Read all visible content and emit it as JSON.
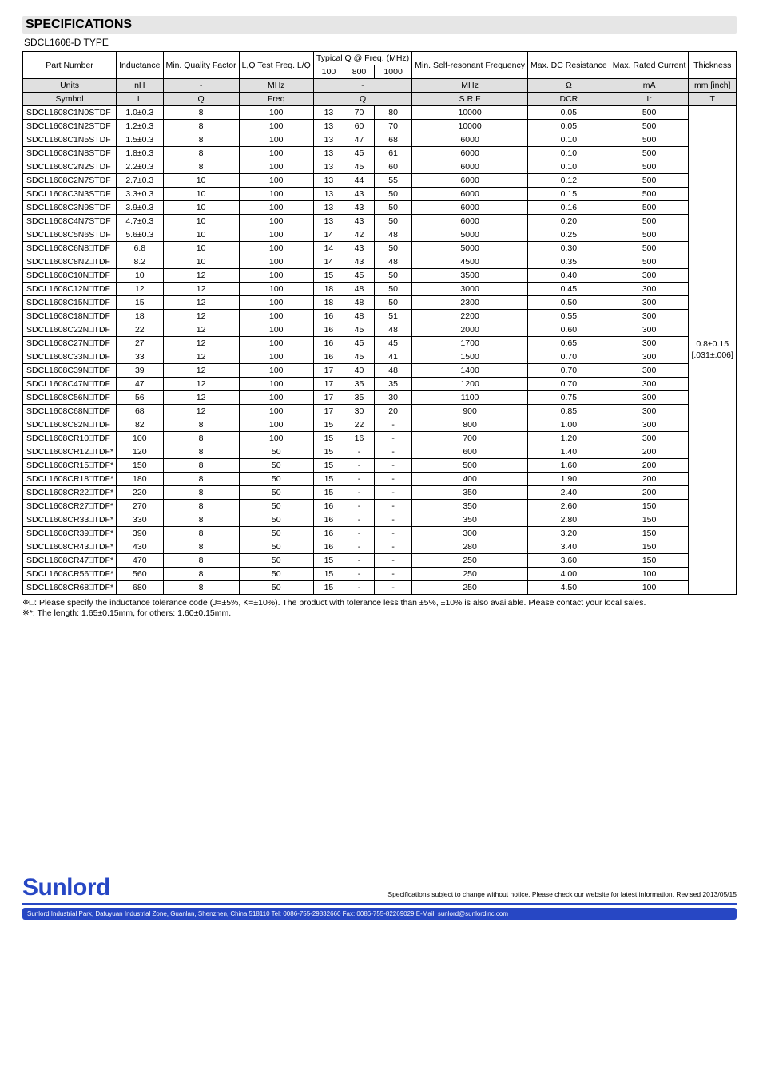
{
  "heading": "SPECIFICATIONS",
  "type_line": "SDCL1608-D TYPE",
  "table": {
    "header": {
      "part_number": "Part Number",
      "inductance": "Inductance",
      "min_q": "Min. Quality Factor",
      "lq_test": "L,Q Test Freq. L/Q",
      "typq_group": "Typical Q @ Freq. (MHz)",
      "q100": "100",
      "q800": "800",
      "q1000": "1000",
      "srf": "Min. Self-resonant Frequency",
      "dcr": "Max. DC Resistance",
      "ir": "Max. Rated Current",
      "thickness": "Thickness"
    },
    "units_row": {
      "label": "Units",
      "inductance": "nH",
      "min_q": "-",
      "lq_test": "MHz",
      "typq": "-",
      "srf": "MHz",
      "dcr": "Ω",
      "ir": "mA",
      "thickness": "mm [inch]"
    },
    "symbol_row": {
      "label": "Symbol",
      "inductance": "L",
      "min_q": "Q",
      "lq_test": "Freq",
      "typq": "Q",
      "srf": "S.R.F",
      "dcr": "DCR",
      "ir": "Ir",
      "thickness": "T"
    },
    "thickness_value": "0.8±0.15 [.031±.006]",
    "rows": [
      {
        "pn": "SDCL1608C1N0STDF",
        "L": "1.0±0.3",
        "Q": "8",
        "F": "100",
        "q100": "13",
        "q800": "70",
        "q1000": "80",
        "srf": "10000",
        "dcr": "0.05",
        "ir": "500"
      },
      {
        "pn": "SDCL1608C1N2STDF",
        "L": "1.2±0.3",
        "Q": "8",
        "F": "100",
        "q100": "13",
        "q800": "60",
        "q1000": "70",
        "srf": "10000",
        "dcr": "0.05",
        "ir": "500"
      },
      {
        "pn": "SDCL1608C1N5STDF",
        "L": "1.5±0.3",
        "Q": "8",
        "F": "100",
        "q100": "13",
        "q800": "47",
        "q1000": "68",
        "srf": "6000",
        "dcr": "0.10",
        "ir": "500"
      },
      {
        "pn": "SDCL1608C1N8STDF",
        "L": "1.8±0.3",
        "Q": "8",
        "F": "100",
        "q100": "13",
        "q800": "45",
        "q1000": "61",
        "srf": "6000",
        "dcr": "0.10",
        "ir": "500"
      },
      {
        "pn": "SDCL1608C2N2STDF",
        "L": "2.2±0.3",
        "Q": "8",
        "F": "100",
        "q100": "13",
        "q800": "45",
        "q1000": "60",
        "srf": "6000",
        "dcr": "0.10",
        "ir": "500"
      },
      {
        "pn": "SDCL1608C2N7STDF",
        "L": "2.7±0.3",
        "Q": "10",
        "F": "100",
        "q100": "13",
        "q800": "44",
        "q1000": "55",
        "srf": "6000",
        "dcr": "0.12",
        "ir": "500"
      },
      {
        "pn": "SDCL1608C3N3STDF",
        "L": "3.3±0.3",
        "Q": "10",
        "F": "100",
        "q100": "13",
        "q800": "43",
        "q1000": "50",
        "srf": "6000",
        "dcr": "0.15",
        "ir": "500"
      },
      {
        "pn": "SDCL1608C3N9STDF",
        "L": "3.9±0.3",
        "Q": "10",
        "F": "100",
        "q100": "13",
        "q800": "43",
        "q1000": "50",
        "srf": "6000",
        "dcr": "0.16",
        "ir": "500"
      },
      {
        "pn": "SDCL1608C4N7STDF",
        "L": "4.7±0.3",
        "Q": "10",
        "F": "100",
        "q100": "13",
        "q800": "43",
        "q1000": "50",
        "srf": "6000",
        "dcr": "0.20",
        "ir": "500"
      },
      {
        "pn": "SDCL1608C5N6STDF",
        "L": "5.6±0.3",
        "Q": "10",
        "F": "100",
        "q100": "14",
        "q800": "42",
        "q1000": "48",
        "srf": "5000",
        "dcr": "0.25",
        "ir": "500"
      },
      {
        "pn": "SDCL1608C6N8□TDF",
        "L": "6.8",
        "Q": "10",
        "F": "100",
        "q100": "14",
        "q800": "43",
        "q1000": "50",
        "srf": "5000",
        "dcr": "0.30",
        "ir": "500"
      },
      {
        "pn": "SDCL1608C8N2□TDF",
        "L": "8.2",
        "Q": "10",
        "F": "100",
        "q100": "14",
        "q800": "43",
        "q1000": "48",
        "srf": "4500",
        "dcr": "0.35",
        "ir": "500"
      },
      {
        "pn": "SDCL1608C10N□TDF",
        "L": "10",
        "Q": "12",
        "F": "100",
        "q100": "15",
        "q800": "45",
        "q1000": "50",
        "srf": "3500",
        "dcr": "0.40",
        "ir": "300"
      },
      {
        "pn": "SDCL1608C12N□TDF",
        "L": "12",
        "Q": "12",
        "F": "100",
        "q100": "18",
        "q800": "48",
        "q1000": "50",
        "srf": "3000",
        "dcr": "0.45",
        "ir": "300"
      },
      {
        "pn": "SDCL1608C15N□TDF",
        "L": "15",
        "Q": "12",
        "F": "100",
        "q100": "18",
        "q800": "48",
        "q1000": "50",
        "srf": "2300",
        "dcr": "0.50",
        "ir": "300"
      },
      {
        "pn": "SDCL1608C18N□TDF",
        "L": "18",
        "Q": "12",
        "F": "100",
        "q100": "16",
        "q800": "48",
        "q1000": "51",
        "srf": "2200",
        "dcr": "0.55",
        "ir": "300"
      },
      {
        "pn": "SDCL1608C22N□TDF",
        "L": "22",
        "Q": "12",
        "F": "100",
        "q100": "16",
        "q800": "45",
        "q1000": "48",
        "srf": "2000",
        "dcr": "0.60",
        "ir": "300"
      },
      {
        "pn": "SDCL1608C27N□TDF",
        "L": "27",
        "Q": "12",
        "F": "100",
        "q100": "16",
        "q800": "45",
        "q1000": "45",
        "srf": "1700",
        "dcr": "0.65",
        "ir": "300"
      },
      {
        "pn": "SDCL1608C33N□TDF",
        "L": "33",
        "Q": "12",
        "F": "100",
        "q100": "16",
        "q800": "45",
        "q1000": "41",
        "srf": "1500",
        "dcr": "0.70",
        "ir": "300"
      },
      {
        "pn": "SDCL1608C39N□TDF",
        "L": "39",
        "Q": "12",
        "F": "100",
        "q100": "17",
        "q800": "40",
        "q1000": "48",
        "srf": "1400",
        "dcr": "0.70",
        "ir": "300"
      },
      {
        "pn": "SDCL1608C47N□TDF",
        "L": "47",
        "Q": "12",
        "F": "100",
        "q100": "17",
        "q800": "35",
        "q1000": "35",
        "srf": "1200",
        "dcr": "0.70",
        "ir": "300"
      },
      {
        "pn": "SDCL1608C56N□TDF",
        "L": "56",
        "Q": "12",
        "F": "100",
        "q100": "17",
        "q800": "35",
        "q1000": "30",
        "srf": "1100",
        "dcr": "0.75",
        "ir": "300"
      },
      {
        "pn": "SDCL1608C68N□TDF",
        "L": "68",
        "Q": "12",
        "F": "100",
        "q100": "17",
        "q800": "30",
        "q1000": "20",
        "srf": "900",
        "dcr": "0.85",
        "ir": "300"
      },
      {
        "pn": "SDCL1608C82N□TDF",
        "L": "82",
        "Q": "8",
        "F": "100",
        "q100": "15",
        "q800": "22",
        "q1000": "-",
        "srf": "800",
        "dcr": "1.00",
        "ir": "300"
      },
      {
        "pn": "SDCL1608CR10□TDF",
        "L": "100",
        "Q": "8",
        "F": "100",
        "q100": "15",
        "q800": "16",
        "q1000": "-",
        "srf": "700",
        "dcr": "1.20",
        "ir": "300"
      },
      {
        "pn": "SDCL1608CR12□TDF*",
        "L": "120",
        "Q": "8",
        "F": "50",
        "q100": "15",
        "q800": "-",
        "q1000": "-",
        "srf": "600",
        "dcr": "1.40",
        "ir": "200"
      },
      {
        "pn": "SDCL1608CR15□TDF*",
        "L": "150",
        "Q": "8",
        "F": "50",
        "q100": "15",
        "q800": "-",
        "q1000": "-",
        "srf": "500",
        "dcr": "1.60",
        "ir": "200"
      },
      {
        "pn": "SDCL1608CR18□TDF*",
        "L": "180",
        "Q": "8",
        "F": "50",
        "q100": "15",
        "q800": "-",
        "q1000": "-",
        "srf": "400",
        "dcr": "1.90",
        "ir": "200"
      },
      {
        "pn": "SDCL1608CR22□TDF*",
        "L": "220",
        "Q": "8",
        "F": "50",
        "q100": "15",
        "q800": "-",
        "q1000": "-",
        "srf": "350",
        "dcr": "2.40",
        "ir": "200"
      },
      {
        "pn": "SDCL1608CR27□TDF*",
        "L": "270",
        "Q": "8",
        "F": "50",
        "q100": "16",
        "q800": "-",
        "q1000": "-",
        "srf": "350",
        "dcr": "2.60",
        "ir": "150"
      },
      {
        "pn": "SDCL1608CR33□TDF*",
        "L": "330",
        "Q": "8",
        "F": "50",
        "q100": "16",
        "q800": "-",
        "q1000": "-",
        "srf": "350",
        "dcr": "2.80",
        "ir": "150"
      },
      {
        "pn": "SDCL1608CR39□TDF*",
        "L": "390",
        "Q": "8",
        "F": "50",
        "q100": "16",
        "q800": "-",
        "q1000": "-",
        "srf": "300",
        "dcr": "3.20",
        "ir": "150"
      },
      {
        "pn": "SDCL1608CR43□TDF*",
        "L": "430",
        "Q": "8",
        "F": "50",
        "q100": "16",
        "q800": "-",
        "q1000": "-",
        "srf": "280",
        "dcr": "3.40",
        "ir": "150"
      },
      {
        "pn": "SDCL1608CR47□TDF*",
        "L": "470",
        "Q": "8",
        "F": "50",
        "q100": "15",
        "q800": "-",
        "q1000": "-",
        "srf": "250",
        "dcr": "3.60",
        "ir": "150"
      },
      {
        "pn": "SDCL1608CR56□TDF*",
        "L": "560",
        "Q": "8",
        "F": "50",
        "q100": "15",
        "q800": "-",
        "q1000": "-",
        "srf": "250",
        "dcr": "4.00",
        "ir": "100"
      },
      {
        "pn": "SDCL1608CR68□TDF*",
        "L": "680",
        "Q": "8",
        "F": "50",
        "q100": "15",
        "q800": "-",
        "q1000": "-",
        "srf": "250",
        "dcr": "4.50",
        "ir": "100"
      }
    ]
  },
  "notes": {
    "n1": "※□: Please specify the inductance tolerance code (J=±5%, K=±10%). The product with tolerance less than ±5%, ±10% is also available. Please contact your local sales.",
    "n2": "※*: The length: 1.65±0.15mm, for others: 1.60±0.15mm."
  },
  "footer": {
    "brand": "Sunlord",
    "disclaimer": "Specifications subject to change without notice. Please check our website for latest information.    Revised 2013/05/15",
    "address": "Sunlord Industrial Park, Dafuyuan Industrial Zone, Guanlan, Shenzhen, China 518110 Tel: 0086-755-29832660 Fax: 0086-755-82269029 E-Mail: sunlord@sunlordinc.com"
  }
}
